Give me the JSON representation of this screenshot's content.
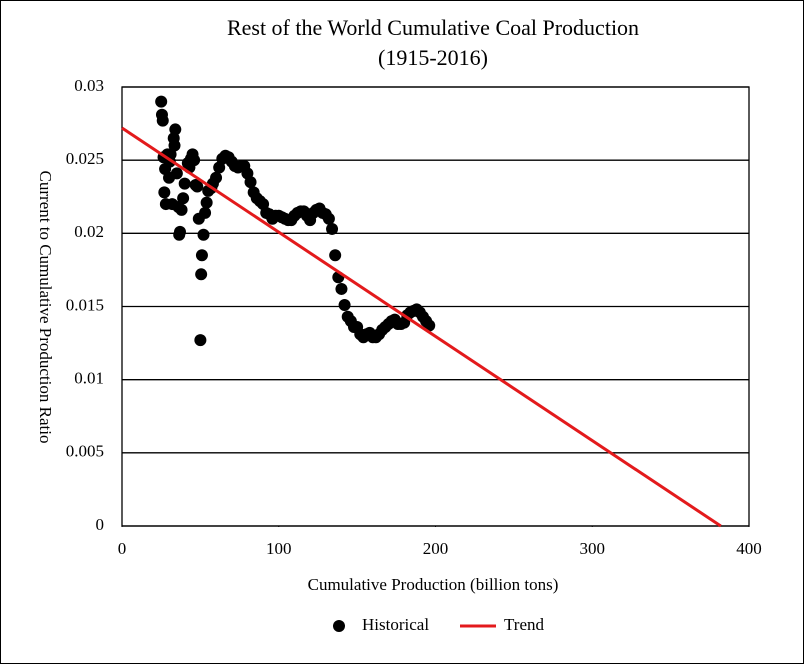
{
  "chart_data": {
    "type": "scatter",
    "title": "Rest of the World Cumulative Coal Production",
    "subtitle": "(1915-2016)",
    "xlabel": "Cumulative Production (billion tons)",
    "ylabel": "Current to Cumulative Production Ratio",
    "xlim": [
      0,
      400
    ],
    "xticks": [
      0,
      100,
      200,
      300,
      400
    ],
    "ylim": [
      0,
      0.03
    ],
    "yticks": [
      0,
      0.005,
      0.01,
      0.015,
      0.02,
      0.025,
      0.03
    ],
    "grid": true,
    "legend": "bottom",
    "series": [
      {
        "name": "Historical",
        "color": "#000000",
        "mode": "markers",
        "x": [
          25,
          25.5,
          26,
          26.5,
          27,
          27.5,
          28,
          29,
          30,
          30.5,
          31,
          32,
          33,
          33.5,
          34,
          35,
          36,
          36.5,
          37,
          38,
          39,
          40,
          42,
          43,
          44,
          45,
          46,
          47,
          48,
          49,
          50,
          50.5,
          51,
          52,
          53,
          54,
          55,
          57,
          58,
          60,
          62,
          64,
          66,
          68,
          70,
          72,
          74,
          76,
          78,
          80,
          82,
          84,
          86,
          88,
          90,
          92,
          94,
          96,
          98,
          100,
          102,
          104,
          106,
          108,
          110,
          112,
          114,
          116,
          118,
          120,
          122,
          124,
          126,
          128,
          130,
          132,
          134,
          136,
          138,
          140,
          142,
          144,
          146,
          148,
          150,
          152,
          154,
          156,
          158,
          160,
          162,
          164,
          166,
          168,
          170,
          172,
          174,
          176,
          178,
          180,
          182,
          184,
          186,
          188,
          190,
          192,
          194,
          196
        ],
        "values": [
          0.029,
          0.0281,
          0.0277,
          0.0252,
          0.0228,
          0.0244,
          0.022,
          0.0254,
          0.0238,
          0.0249,
          0.0254,
          0.022,
          0.0265,
          0.026,
          0.0271,
          0.0241,
          0.0218,
          0.0199,
          0.0201,
          0.0216,
          0.0224,
          0.0234,
          0.0248,
          0.0245,
          0.0251,
          0.0254,
          0.025,
          0.0233,
          0.0232,
          0.021,
          0.0127,
          0.0172,
          0.0185,
          0.0199,
          0.0214,
          0.0221,
          0.0229,
          0.0231,
          0.0234,
          0.0238,
          0.0245,
          0.0251,
          0.0253,
          0.0252,
          0.0249,
          0.0246,
          0.0245,
          0.0246,
          0.0246,
          0.0241,
          0.0235,
          0.0228,
          0.0224,
          0.0222,
          0.022,
          0.0214,
          0.0213,
          0.021,
          0.0212,
          0.0212,
          0.0211,
          0.021,
          0.0209,
          0.0209,
          0.0212,
          0.0214,
          0.0215,
          0.0215,
          0.0212,
          0.0209,
          0.0214,
          0.0216,
          0.0217,
          0.0214,
          0.0213,
          0.021,
          0.0203,
          0.0185,
          0.017,
          0.0162,
          0.0151,
          0.0143,
          0.014,
          0.0136,
          0.0136,
          0.0131,
          0.0129,
          0.0131,
          0.0132,
          0.0129,
          0.0129,
          0.0131,
          0.0134,
          0.0136,
          0.0138,
          0.014,
          0.0141,
          0.0138,
          0.0138,
          0.0139,
          0.0144,
          0.0146,
          0.0147,
          0.0148,
          0.0146,
          0.0143,
          0.014,
          0.0137
        ]
      },
      {
        "name": "Trend",
        "color": "#e31a1c",
        "mode": "line",
        "x": [
          0,
          382
        ],
        "values": [
          0.0272,
          0
        ]
      }
    ]
  }
}
